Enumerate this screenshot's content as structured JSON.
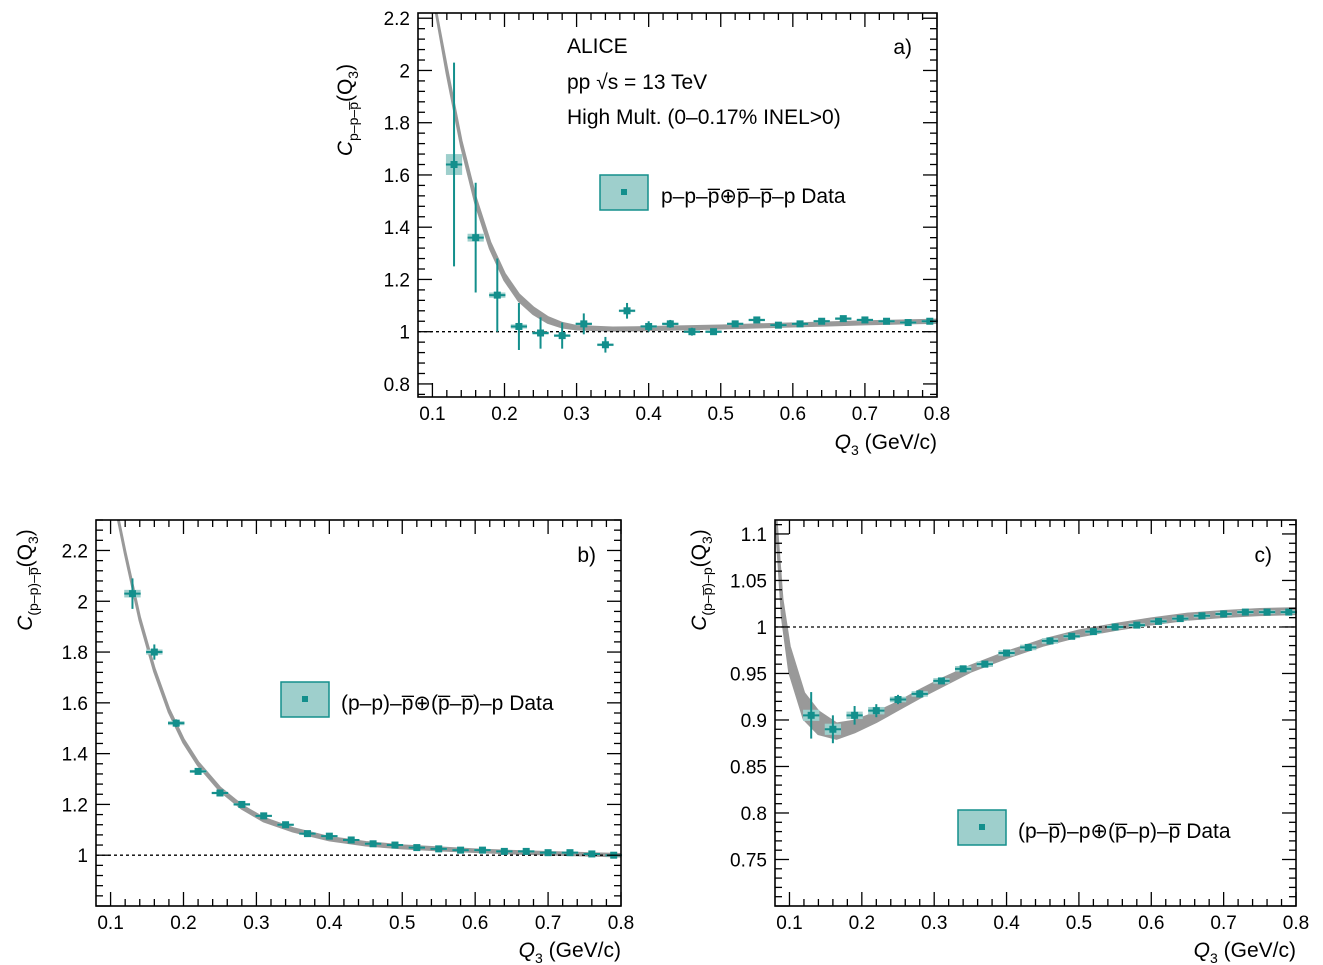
{
  "colors": {
    "data": "#138f8c",
    "band": "#9ecfcc",
    "fit": "#999999",
    "ref_line": "#000000"
  },
  "panels": [
    {
      "id": "a",
      "panel_label": "a)",
      "y_title": {
        "base": "C",
        "sub": "p–p–p̅",
        "arg": "(Q",
        "arg_sub": "3",
        "arg_close": ")"
      },
      "x_title": {
        "base": "Q",
        "sub": "3",
        "rest": " (GeV/c)"
      },
      "notes": [
        "ALICE",
        "pp  √s = 13 TeV",
        "High Mult. (0–0.17% INEL>0)"
      ],
      "legend": "p–p–p̅⊕p̅–p̅–p Data"
    },
    {
      "id": "b",
      "panel_label": "b)",
      "y_title": {
        "base": "C",
        "sub": "(p–p)–p̅",
        "arg": "(Q",
        "arg_sub": "3",
        "arg_close": ")"
      },
      "x_title": {
        "base": "Q",
        "sub": "3",
        "rest": " (GeV/c)"
      },
      "notes": [],
      "legend": "(p–p)–p̅⊕(p̅–p̅)–p Data"
    },
    {
      "id": "c",
      "panel_label": "c)",
      "y_title": {
        "base": "C",
        "sub": "(p–p̅)–p",
        "arg": "(Q",
        "arg_sub": "3",
        "arg_close": ")"
      },
      "x_title": {
        "base": "Q",
        "sub": "3",
        "rest": " (GeV/c)"
      },
      "notes": [],
      "legend": "(p–p̅)–p⊕(p̅–p)–p̅ Data"
    }
  ],
  "chart_data": [
    {
      "type": "scatter",
      "xlim": [
        0.08,
        0.8
      ],
      "ylim": [
        0.75,
        2.22
      ],
      "xticks": [
        "0.1",
        "0.2",
        "0.3",
        "0.4",
        "0.5",
        "0.6",
        "0.7",
        "0.8"
      ],
      "yticks": [
        "0.8",
        "1",
        "1.2",
        "1.4",
        "1.6",
        "1.8",
        "2",
        "2.2"
      ],
      "reference_line": 1,
      "series": [
        {
          "name": "p–p–p̅⊕p̅–p̅–p Data",
          "points": [
            {
              "x": 0.13,
              "y": 1.64,
              "err": 0.39,
              "sys": 0.04
            },
            {
              "x": 0.16,
              "y": 1.36,
              "err": 0.21,
              "sys": 0.015
            },
            {
              "x": 0.19,
              "y": 1.14,
              "err": 0.14,
              "sys": 0.01
            },
            {
              "x": 0.22,
              "y": 1.02,
              "err": 0.09,
              "sys": 0.008
            },
            {
              "x": 0.25,
              "y": 0.995,
              "err": 0.06,
              "sys": 0.006
            },
            {
              "x": 0.28,
              "y": 0.985,
              "err": 0.05,
              "sys": 0.005
            },
            {
              "x": 0.31,
              "y": 1.03,
              "err": 0.04,
              "sys": 0.005
            },
            {
              "x": 0.34,
              "y": 0.95,
              "err": 0.03,
              "sys": 0.005
            },
            {
              "x": 0.37,
              "y": 1.08,
              "err": 0.03,
              "sys": 0.005
            },
            {
              "x": 0.4,
              "y": 1.02,
              "err": 0.02,
              "sys": 0.005
            },
            {
              "x": 0.43,
              "y": 1.03,
              "err": 0.015,
              "sys": 0.005
            },
            {
              "x": 0.46,
              "y": 1.0,
              "err": 0.015,
              "sys": 0.005
            },
            {
              "x": 0.49,
              "y": 1.0,
              "err": 0.012,
              "sys": 0.005
            },
            {
              "x": 0.52,
              "y": 1.03,
              "err": 0.01,
              "sys": 0.005
            },
            {
              "x": 0.55,
              "y": 1.045,
              "err": 0.01,
              "sys": 0.005
            },
            {
              "x": 0.58,
              "y": 1.025,
              "err": 0.01,
              "sys": 0.005
            },
            {
              "x": 0.61,
              "y": 1.03,
              "err": 0.01,
              "sys": 0.005
            },
            {
              "x": 0.64,
              "y": 1.04,
              "err": 0.008,
              "sys": 0.005
            },
            {
              "x": 0.67,
              "y": 1.05,
              "err": 0.008,
              "sys": 0.005
            },
            {
              "x": 0.7,
              "y": 1.045,
              "err": 0.008,
              "sys": 0.005
            },
            {
              "x": 0.73,
              "y": 1.04,
              "err": 0.008,
              "sys": 0.005
            },
            {
              "x": 0.76,
              "y": 1.035,
              "err": 0.008,
              "sys": 0.005
            },
            {
              "x": 0.79,
              "y": 1.04,
              "err": 0.008,
              "sys": 0.005
            }
          ]
        }
      ],
      "model_band": [
        {
          "x": 0.1,
          "y": 2.3,
          "w": 0.0
        },
        {
          "x": 0.12,
          "y": 2.0,
          "w": 0.01
        },
        {
          "x": 0.14,
          "y": 1.72,
          "w": 0.01
        },
        {
          "x": 0.16,
          "y": 1.5,
          "w": 0.012
        },
        {
          "x": 0.18,
          "y": 1.33,
          "w": 0.012
        },
        {
          "x": 0.2,
          "y": 1.21,
          "w": 0.012
        },
        {
          "x": 0.22,
          "y": 1.13,
          "w": 0.012
        },
        {
          "x": 0.24,
          "y": 1.08,
          "w": 0.012
        },
        {
          "x": 0.26,
          "y": 1.045,
          "w": 0.01
        },
        {
          "x": 0.28,
          "y": 1.025,
          "w": 0.008
        },
        {
          "x": 0.3,
          "y": 1.015,
          "w": 0.006
        },
        {
          "x": 0.35,
          "y": 1.01,
          "w": 0.005
        },
        {
          "x": 0.4,
          "y": 1.012,
          "w": 0.005
        },
        {
          "x": 0.45,
          "y": 1.015,
          "w": 0.005
        },
        {
          "x": 0.5,
          "y": 1.018,
          "w": 0.005
        },
        {
          "x": 0.55,
          "y": 1.022,
          "w": 0.005
        },
        {
          "x": 0.6,
          "y": 1.026,
          "w": 0.005
        },
        {
          "x": 0.65,
          "y": 1.03,
          "w": 0.005
        },
        {
          "x": 0.7,
          "y": 1.034,
          "w": 0.005
        },
        {
          "x": 0.75,
          "y": 1.037,
          "w": 0.005
        },
        {
          "x": 0.8,
          "y": 1.04,
          "w": 0.005
        }
      ]
    },
    {
      "type": "scatter",
      "xlim": [
        0.08,
        0.8
      ],
      "ylim": [
        0.8,
        2.32
      ],
      "xticks": [
        "0.1",
        "0.2",
        "0.3",
        "0.4",
        "0.5",
        "0.6",
        "0.7",
        "0.8"
      ],
      "yticks": [
        "1",
        "1.2",
        "1.4",
        "1.6",
        "1.8",
        "2",
        "2.2"
      ],
      "reference_line": 1,
      "series": [
        {
          "name": "(p–p)–p̅⊕(p̅–p̅)–p Data",
          "points": [
            {
              "x": 0.13,
              "y": 2.03,
              "err": 0.06,
              "sys": 0.015
            },
            {
              "x": 0.16,
              "y": 1.8,
              "err": 0.03,
              "sys": 0.01
            },
            {
              "x": 0.19,
              "y": 1.52,
              "err": 0.015,
              "sys": 0.008
            },
            {
              "x": 0.22,
              "y": 1.33,
              "err": 0.01,
              "sys": 0.006
            },
            {
              "x": 0.25,
              "y": 1.245,
              "err": 0.01,
              "sys": 0.005
            },
            {
              "x": 0.28,
              "y": 1.2,
              "err": 0.008,
              "sys": 0.005
            },
            {
              "x": 0.31,
              "y": 1.155,
              "err": 0.006,
              "sys": 0.004
            },
            {
              "x": 0.34,
              "y": 1.12,
              "err": 0.006,
              "sys": 0.004
            },
            {
              "x": 0.37,
              "y": 1.085,
              "err": 0.005,
              "sys": 0.004
            },
            {
              "x": 0.4,
              "y": 1.075,
              "err": 0.005,
              "sys": 0.004
            },
            {
              "x": 0.43,
              "y": 1.06,
              "err": 0.005,
              "sys": 0.004
            },
            {
              "x": 0.46,
              "y": 1.045,
              "err": 0.004,
              "sys": 0.004
            },
            {
              "x": 0.49,
              "y": 1.04,
              "err": 0.004,
              "sys": 0.004
            },
            {
              "x": 0.52,
              "y": 1.03,
              "err": 0.004,
              "sys": 0.004
            },
            {
              "x": 0.55,
              "y": 1.025,
              "err": 0.004,
              "sys": 0.004
            },
            {
              "x": 0.58,
              "y": 1.02,
              "err": 0.004,
              "sys": 0.004
            },
            {
              "x": 0.61,
              "y": 1.02,
              "err": 0.004,
              "sys": 0.004
            },
            {
              "x": 0.64,
              "y": 1.015,
              "err": 0.004,
              "sys": 0.004
            },
            {
              "x": 0.67,
              "y": 1.015,
              "err": 0.004,
              "sys": 0.004
            },
            {
              "x": 0.7,
              "y": 1.01,
              "err": 0.004,
              "sys": 0.004
            },
            {
              "x": 0.73,
              "y": 1.01,
              "err": 0.004,
              "sys": 0.004
            },
            {
              "x": 0.76,
              "y": 1.005,
              "err": 0.004,
              "sys": 0.004
            },
            {
              "x": 0.79,
              "y": 1.0,
              "err": 0.004,
              "sys": 0.004
            }
          ]
        }
      ],
      "model_band": [
        {
          "x": 0.11,
          "y": 2.33,
          "w": 0.004
        },
        {
          "x": 0.12,
          "y": 2.19,
          "w": 0.005
        },
        {
          "x": 0.14,
          "y": 1.93,
          "w": 0.006
        },
        {
          "x": 0.16,
          "y": 1.73,
          "w": 0.006
        },
        {
          "x": 0.18,
          "y": 1.57,
          "w": 0.006
        },
        {
          "x": 0.2,
          "y": 1.45,
          "w": 0.006
        },
        {
          "x": 0.22,
          "y": 1.36,
          "w": 0.006
        },
        {
          "x": 0.25,
          "y": 1.26,
          "w": 0.006
        },
        {
          "x": 0.28,
          "y": 1.19,
          "w": 0.006
        },
        {
          "x": 0.31,
          "y": 1.14,
          "w": 0.006
        },
        {
          "x": 0.35,
          "y": 1.1,
          "w": 0.006
        },
        {
          "x": 0.4,
          "y": 1.065,
          "w": 0.006
        },
        {
          "x": 0.45,
          "y": 1.045,
          "w": 0.006
        },
        {
          "x": 0.5,
          "y": 1.033,
          "w": 0.005
        },
        {
          "x": 0.55,
          "y": 1.025,
          "w": 0.005
        },
        {
          "x": 0.6,
          "y": 1.018,
          "w": 0.004
        },
        {
          "x": 0.65,
          "y": 1.012,
          "w": 0.004
        },
        {
          "x": 0.7,
          "y": 1.008,
          "w": 0.004
        },
        {
          "x": 0.75,
          "y": 1.004,
          "w": 0.004
        },
        {
          "x": 0.8,
          "y": 1.0,
          "w": 0.004
        }
      ]
    },
    {
      "type": "scatter",
      "xlim": [
        0.08,
        0.8
      ],
      "ylim": [
        0.7,
        1.115
      ],
      "xticks": [
        "0.1",
        "0.2",
        "0.3",
        "0.4",
        "0.5",
        "0.6",
        "0.7",
        "0.8"
      ],
      "yticks": [
        "0.75",
        "0.8",
        "0.85",
        "0.9",
        "0.95",
        "1",
        "1.05",
        "1.1"
      ],
      "reference_line": 1,
      "series": [
        {
          "name": "(p–p̅)–p⊕(p̅–p)–p̅ Data",
          "points": [
            {
              "x": 0.13,
              "y": 0.905,
              "err": 0.025,
              "sys": 0.006
            },
            {
              "x": 0.16,
              "y": 0.89,
              "err": 0.015,
              "sys": 0.006
            },
            {
              "x": 0.19,
              "y": 0.905,
              "err": 0.01,
              "sys": 0.004
            },
            {
              "x": 0.22,
              "y": 0.91,
              "err": 0.007,
              "sys": 0.004
            },
            {
              "x": 0.25,
              "y": 0.922,
              "err": 0.005,
              "sys": 0.003
            },
            {
              "x": 0.28,
              "y": 0.928,
              "err": 0.004,
              "sys": 0.003
            },
            {
              "x": 0.31,
              "y": 0.942,
              "err": 0.003,
              "sys": 0.003
            },
            {
              "x": 0.34,
              "y": 0.955,
              "err": 0.003,
              "sys": 0.003
            },
            {
              "x": 0.37,
              "y": 0.96,
              "err": 0.003,
              "sys": 0.003
            },
            {
              "x": 0.4,
              "y": 0.972,
              "err": 0.003,
              "sys": 0.003
            },
            {
              "x": 0.43,
              "y": 0.978,
              "err": 0.003,
              "sys": 0.003
            },
            {
              "x": 0.46,
              "y": 0.985,
              "err": 0.003,
              "sys": 0.003
            },
            {
              "x": 0.49,
              "y": 0.99,
              "err": 0.002,
              "sys": 0.002
            },
            {
              "x": 0.52,
              "y": 0.995,
              "err": 0.002,
              "sys": 0.002
            },
            {
              "x": 0.55,
              "y": 1.0,
              "err": 0.002,
              "sys": 0.002
            },
            {
              "x": 0.58,
              "y": 1.002,
              "err": 0.002,
              "sys": 0.002
            },
            {
              "x": 0.61,
              "y": 1.006,
              "err": 0.002,
              "sys": 0.002
            },
            {
              "x": 0.64,
              "y": 1.009,
              "err": 0.002,
              "sys": 0.002
            },
            {
              "x": 0.67,
              "y": 1.012,
              "err": 0.002,
              "sys": 0.002
            },
            {
              "x": 0.7,
              "y": 1.014,
              "err": 0.002,
              "sys": 0.002
            },
            {
              "x": 0.73,
              "y": 1.016,
              "err": 0.002,
              "sys": 0.002
            },
            {
              "x": 0.76,
              "y": 1.016,
              "err": 0.002,
              "sys": 0.002
            },
            {
              "x": 0.79,
              "y": 1.016,
              "err": 0.002,
              "sys": 0.002
            }
          ]
        }
      ],
      "model_band": [
        {
          "x": 0.082,
          "y": 1.11,
          "w": 0.004
        },
        {
          "x": 0.09,
          "y": 1.02,
          "w": 0.01
        },
        {
          "x": 0.1,
          "y": 0.965,
          "w": 0.014
        },
        {
          "x": 0.12,
          "y": 0.915,
          "w": 0.014
        },
        {
          "x": 0.14,
          "y": 0.897,
          "w": 0.012
        },
        {
          "x": 0.165,
          "y": 0.888,
          "w": 0.008
        },
        {
          "x": 0.19,
          "y": 0.893,
          "w": 0.006
        },
        {
          "x": 0.22,
          "y": 0.903,
          "w": 0.005
        },
        {
          "x": 0.25,
          "y": 0.915,
          "w": 0.004
        },
        {
          "x": 0.28,
          "y": 0.928,
          "w": 0.004
        },
        {
          "x": 0.31,
          "y": 0.94,
          "w": 0.004
        },
        {
          "x": 0.35,
          "y": 0.955,
          "w": 0.003
        },
        {
          "x": 0.4,
          "y": 0.97,
          "w": 0.003
        },
        {
          "x": 0.45,
          "y": 0.983,
          "w": 0.003
        },
        {
          "x": 0.5,
          "y": 0.993,
          "w": 0.003
        },
        {
          "x": 0.55,
          "y": 1.0,
          "w": 0.003
        },
        {
          "x": 0.6,
          "y": 1.006,
          "w": 0.003
        },
        {
          "x": 0.65,
          "y": 1.011,
          "w": 0.003
        },
        {
          "x": 0.7,
          "y": 1.014,
          "w": 0.003
        },
        {
          "x": 0.75,
          "y": 1.016,
          "w": 0.003
        },
        {
          "x": 0.8,
          "y": 1.017,
          "w": 0.003
        }
      ]
    }
  ]
}
